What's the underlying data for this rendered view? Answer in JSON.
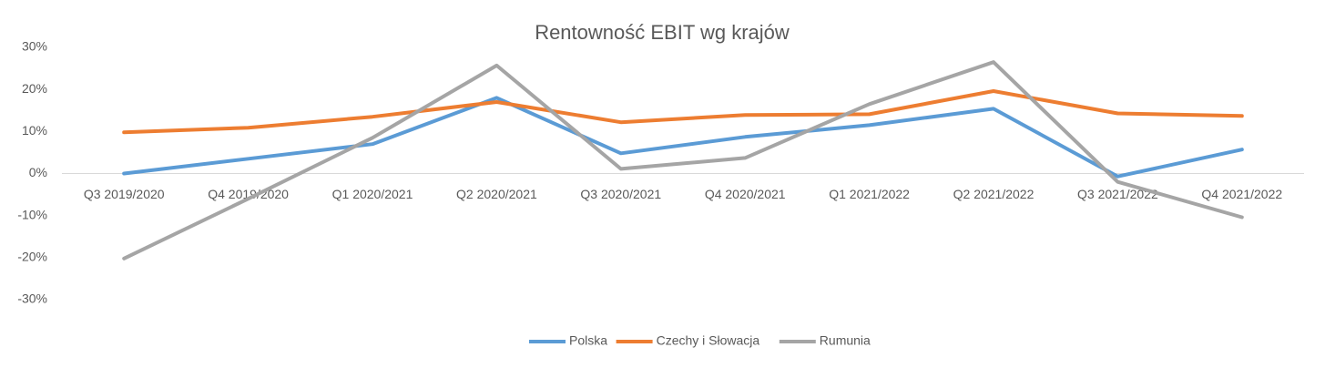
{
  "chart_data": {
    "type": "line",
    "title": "Rentowność EBIT wg krajów",
    "categories": [
      "Q3 2019/2020",
      "Q4 2019/2020",
      "Q1 2020/2021",
      "Q2 2020/2021",
      "Q3 2020/2021",
      "Q4 2020/2021",
      "Q1 2021/2022",
      "Q2 2021/2022",
      "Q3 2021/2022",
      "Q4 2021/2022"
    ],
    "series": [
      {
        "name": "Polska",
        "color": "#5b9bd5",
        "values": [
          0,
          3.5,
          7,
          18,
          4.8,
          8.7,
          11.5,
          15.4,
          -0.7,
          5.7
        ]
      },
      {
        "name": "Czechy i Słowacja",
        "color": "#ed7d31",
        "values": [
          9.8,
          10.9,
          13.5,
          17,
          12.2,
          13.9,
          14.1,
          19.6,
          14.3,
          13.7
        ]
      },
      {
        "name": "Rumunia",
        "color": "#a5a5a5",
        "values": [
          -20.2,
          -6,
          8.5,
          25.7,
          1.1,
          3.7,
          16.5,
          26.5,
          -2,
          -10.4
        ]
      }
    ],
    "ylim": [
      -30,
      30
    ],
    "yticks": [
      {
        "value": 30,
        "label": "30%"
      },
      {
        "value": 20,
        "label": "20%"
      },
      {
        "value": 10,
        "label": "10%"
      },
      {
        "value": 0,
        "label": "0%"
      },
      {
        "value": -10,
        "label": "-10%"
      },
      {
        "value": -20,
        "label": "-20%"
      },
      {
        "value": -30,
        "label": "-30%"
      }
    ],
    "grid": false,
    "legend": "bottom"
  }
}
